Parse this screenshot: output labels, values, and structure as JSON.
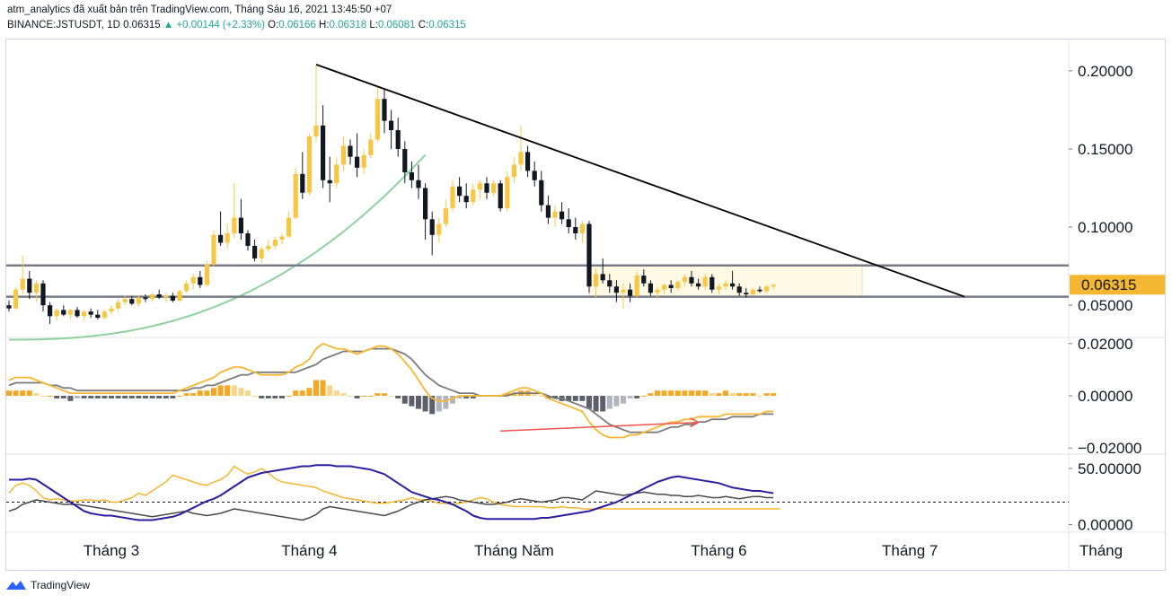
{
  "header": {
    "line1": "atm_analytics đã xuất bản trên TradingView.com, Tháng Sáu 16, 2021 13:45:50 +07",
    "symbol": "BINANCE:JSTUSDT, 1D",
    "last": "0.06315",
    "change": "▲ +0.00144 (+2.33%)",
    "open_label": "O:",
    "open": "0.06166",
    "high_label": "H:",
    "high": "0.06318",
    "low_label": "L:",
    "low": "0.06081",
    "close_label": "C:",
    "close": "0.06315"
  },
  "footer": {
    "brand": "TradingView"
  },
  "colors": {
    "up": "#f7c744",
    "down": "#131722",
    "accent": "#f5b731",
    "grid": "#e0e3eb",
    "macd_signal": "#7b7b7b",
    "rsi_blue": "#2b1fa0",
    "hist_pos": "#f5a623",
    "hist_neg": "#5d606b",
    "trend": "#000000",
    "curve": "#8fd19e",
    "div_line": "#ef5350"
  },
  "chart_data": [
    {
      "type": "candlestick",
      "name": "price",
      "ylim": [
        0.03,
        0.22
      ],
      "yticks": [
        "0.20000",
        "0.15000",
        "0.10000",
        "0.05000"
      ],
      "ytick_values": [
        0.2,
        0.15,
        0.1,
        0.05
      ],
      "last_price_label": "0.06315",
      "last_price": 0.06315,
      "xticks": [
        "Tháng 3",
        "Tháng 4",
        "Tháng Năm",
        "Tháng 6",
        "Tháng 7",
        "Tháng"
      ],
      "candles_ohlc": [
        [
          0.05,
          0.053,
          0.046,
          0.048
        ],
        [
          0.048,
          0.062,
          0.047,
          0.06
        ],
        [
          0.06,
          0.082,
          0.057,
          0.067
        ],
        [
          0.067,
          0.072,
          0.054,
          0.058
        ],
        [
          0.058,
          0.066,
          0.052,
          0.064
        ],
        [
          0.064,
          0.066,
          0.046,
          0.05
        ],
        [
          0.05,
          0.052,
          0.038,
          0.043
        ],
        [
          0.043,
          0.048,
          0.04,
          0.047
        ],
        [
          0.047,
          0.05,
          0.043,
          0.044
        ],
        [
          0.044,
          0.048,
          0.041,
          0.047
        ],
        [
          0.047,
          0.049,
          0.042,
          0.043
        ],
        [
          0.043,
          0.047,
          0.04,
          0.046
        ],
        [
          0.046,
          0.048,
          0.042,
          0.044
        ],
        [
          0.044,
          0.047,
          0.041,
          0.042
        ],
        [
          0.042,
          0.047,
          0.041,
          0.046
        ],
        [
          0.046,
          0.05,
          0.044,
          0.048
        ],
        [
          0.048,
          0.054,
          0.046,
          0.052
        ],
        [
          0.052,
          0.056,
          0.05,
          0.054
        ],
        [
          0.054,
          0.056,
          0.05,
          0.051
        ],
        [
          0.051,
          0.056,
          0.049,
          0.055
        ],
        [
          0.055,
          0.057,
          0.052,
          0.054
        ],
        [
          0.054,
          0.058,
          0.052,
          0.057
        ],
        [
          0.057,
          0.06,
          0.054,
          0.055
        ],
        [
          0.055,
          0.058,
          0.052,
          0.056
        ],
        [
          0.056,
          0.058,
          0.052,
          0.053
        ],
        [
          0.053,
          0.06,
          0.052,
          0.059
        ],
        [
          0.059,
          0.066,
          0.058,
          0.064
        ],
        [
          0.064,
          0.07,
          0.06,
          0.068
        ],
        [
          0.068,
          0.072,
          0.061,
          0.063
        ],
        [
          0.063,
          0.078,
          0.062,
          0.076
        ],
        [
          0.076,
          0.098,
          0.075,
          0.095
        ],
        [
          0.095,
          0.11,
          0.088,
          0.09
        ],
        [
          0.09,
          0.102,
          0.086,
          0.096
        ],
        [
          0.096,
          0.128,
          0.093,
          0.106
        ],
        [
          0.106,
          0.118,
          0.092,
          0.096
        ],
        [
          0.096,
          0.098,
          0.085,
          0.088
        ],
        [
          0.088,
          0.092,
          0.078,
          0.08
        ],
        [
          0.08,
          0.088,
          0.077,
          0.086
        ],
        [
          0.086,
          0.092,
          0.084,
          0.088
        ],
        [
          0.088,
          0.094,
          0.086,
          0.092
        ],
        [
          0.092,
          0.096,
          0.089,
          0.094
        ],
        [
          0.094,
          0.11,
          0.093,
          0.106
        ],
        [
          0.106,
          0.138,
          0.105,
          0.134
        ],
        [
          0.134,
          0.148,
          0.118,
          0.122
        ],
        [
          0.122,
          0.16,
          0.12,
          0.158
        ],
        [
          0.158,
          0.204,
          0.155,
          0.165
        ],
        [
          0.165,
          0.178,
          0.125,
          0.13
        ],
        [
          0.13,
          0.145,
          0.116,
          0.128
        ],
        [
          0.128,
          0.145,
          0.125,
          0.14
        ],
        [
          0.14,
          0.158,
          0.136,
          0.152
        ],
        [
          0.152,
          0.156,
          0.14,
          0.145
        ],
        [
          0.145,
          0.16,
          0.132,
          0.138
        ],
        [
          0.138,
          0.15,
          0.134,
          0.146
        ],
        [
          0.146,
          0.16,
          0.144,
          0.156
        ],
        [
          0.156,
          0.19,
          0.155,
          0.182
        ],
        [
          0.182,
          0.188,
          0.16,
          0.168
        ],
        [
          0.168,
          0.175,
          0.15,
          0.162
        ],
        [
          0.162,
          0.17,
          0.145,
          0.15
        ],
        [
          0.15,
          0.155,
          0.128,
          0.135
        ],
        [
          0.135,
          0.142,
          0.125,
          0.13
        ],
        [
          0.13,
          0.14,
          0.118,
          0.125
        ],
        [
          0.125,
          0.128,
          0.092,
          0.105
        ],
        [
          0.105,
          0.11,
          0.082,
          0.095
        ],
        [
          0.095,
          0.106,
          0.09,
          0.102
        ],
        [
          0.102,
          0.118,
          0.1,
          0.112
        ],
        [
          0.112,
          0.13,
          0.11,
          0.126
        ],
        [
          0.126,
          0.132,
          0.116,
          0.12
        ],
        [
          0.12,
          0.128,
          0.112,
          0.116
        ],
        [
          0.116,
          0.128,
          0.114,
          0.124
        ],
        [
          0.124,
          0.13,
          0.118,
          0.128
        ],
        [
          0.128,
          0.132,
          0.118,
          0.122
        ],
        [
          0.122,
          0.13,
          0.12,
          0.128
        ],
        [
          0.128,
          0.13,
          0.11,
          0.112
        ],
        [
          0.112,
          0.136,
          0.11,
          0.132
        ],
        [
          0.132,
          0.145,
          0.128,
          0.14
        ],
        [
          0.14,
          0.165,
          0.136,
          0.148
        ],
        [
          0.148,
          0.152,
          0.132,
          0.136
        ],
        [
          0.136,
          0.142,
          0.126,
          0.13
        ],
        [
          0.13,
          0.136,
          0.11,
          0.114
        ],
        [
          0.114,
          0.12,
          0.102,
          0.106
        ],
        [
          0.106,
          0.114,
          0.1,
          0.11
        ],
        [
          0.11,
          0.116,
          0.102,
          0.105
        ],
        [
          0.105,
          0.112,
          0.096,
          0.1
        ],
        [
          0.1,
          0.106,
          0.092,
          0.096
        ],
        [
          0.096,
          0.104,
          0.09,
          0.102
        ],
        [
          0.102,
          0.104,
          0.058,
          0.062
        ],
        [
          0.062,
          0.074,
          0.055,
          0.07
        ],
        [
          0.07,
          0.08,
          0.064,
          0.066
        ],
        [
          0.066,
          0.07,
          0.058,
          0.062
        ],
        [
          0.062,
          0.066,
          0.052,
          0.058
        ],
        [
          0.058,
          0.064,
          0.048,
          0.06
        ],
        [
          0.06,
          0.064,
          0.052,
          0.056
        ],
        [
          0.056,
          0.072,
          0.055,
          0.069
        ],
        [
          0.069,
          0.073,
          0.062,
          0.064
        ],
        [
          0.064,
          0.066,
          0.056,
          0.058
        ],
        [
          0.058,
          0.062,
          0.054,
          0.06
        ],
        [
          0.06,
          0.064,
          0.057,
          0.063
        ],
        [
          0.063,
          0.066,
          0.058,
          0.061
        ],
        [
          0.061,
          0.066,
          0.059,
          0.065
        ],
        [
          0.065,
          0.07,
          0.062,
          0.068
        ],
        [
          0.068,
          0.072,
          0.062,
          0.064
        ],
        [
          0.064,
          0.067,
          0.06,
          0.062
        ],
        [
          0.062,
          0.07,
          0.06,
          0.068
        ],
        [
          0.068,
          0.07,
          0.058,
          0.06
        ],
        [
          0.06,
          0.064,
          0.057,
          0.062
        ],
        [
          0.062,
          0.066,
          0.06,
          0.064
        ],
        [
          0.064,
          0.072,
          0.06,
          0.062
        ],
        [
          0.062,
          0.064,
          0.056,
          0.058
        ],
        [
          0.058,
          0.061,
          0.055,
          0.057
        ],
        [
          0.057,
          0.061,
          0.056,
          0.06
        ],
        [
          0.06,
          0.062,
          0.058,
          0.059
        ],
        [
          0.059,
          0.063,
          0.058,
          0.062
        ],
        [
          0.062,
          0.064,
          0.06,
          0.063
        ]
      ],
      "resistance": 0.0755,
      "support": 0.0555,
      "trendline": [
        [
          45,
          0.204
        ],
        [
          140,
          0.0555
        ]
      ],
      "range_box": {
        "from_index": 85,
        "to_index": 125,
        "top": 0.0755,
        "bottom": 0.0555
      }
    },
    {
      "type": "line",
      "name": "macd",
      "ylim": [
        -0.022,
        0.022
      ],
      "yticks": [
        "0.02000",
        "0.00000",
        "−0.02000"
      ],
      "ytick_values": [
        0.02,
        0.0,
        -0.02
      ],
      "macd": [
        0.006,
        0.007,
        0.007,
        0.007,
        0.006,
        0.005,
        0.004,
        0.003,
        0.002,
        0.001,
        0.001,
        0.001,
        0.001,
        0.001,
        0.001,
        0.001,
        0.001,
        0.001,
        0.001,
        0.001,
        0.001,
        0.001,
        0.001,
        0.001,
        0.001,
        0.002,
        0.003,
        0.004,
        0.005,
        0.006,
        0.007,
        0.009,
        0.01,
        0.011,
        0.011,
        0.01,
        0.009,
        0.008,
        0.008,
        0.008,
        0.008,
        0.009,
        0.011,
        0.012,
        0.014,
        0.018,
        0.02,
        0.019,
        0.018,
        0.018,
        0.017,
        0.016,
        0.017,
        0.018,
        0.019,
        0.019,
        0.018,
        0.016,
        0.013,
        0.01,
        0.006,
        0.002,
        -0.001,
        -0.002,
        -0.002,
        -0.001,
        0.0,
        0.0,
        0.0,
        0.0,
        0.0,
        0.0,
        0.0,
        0.001,
        0.002,
        0.003,
        0.003,
        0.002,
        0.001,
        -0.001,
        -0.002,
        -0.003,
        -0.004,
        -0.005,
        -0.006,
        -0.01,
        -0.013,
        -0.015,
        -0.016,
        -0.016,
        -0.016,
        -0.015,
        -0.015,
        -0.014,
        -0.013,
        -0.012,
        -0.011,
        -0.01,
        -0.01,
        -0.009,
        -0.009,
        -0.008,
        -0.008,
        -0.008,
        -0.008,
        -0.007,
        -0.007,
        -0.007,
        -0.007,
        -0.007,
        -0.007,
        -0.006,
        -0.006
      ],
      "signal": [
        0.004,
        0.005,
        0.005,
        0.005,
        0.005,
        0.005,
        0.004,
        0.004,
        0.003,
        0.003,
        0.002,
        0.002,
        0.002,
        0.002,
        0.002,
        0.002,
        0.002,
        0.002,
        0.002,
        0.002,
        0.002,
        0.002,
        0.002,
        0.002,
        0.002,
        0.002,
        0.002,
        0.003,
        0.003,
        0.004,
        0.004,
        0.005,
        0.006,
        0.007,
        0.008,
        0.008,
        0.009,
        0.009,
        0.009,
        0.009,
        0.009,
        0.009,
        0.009,
        0.01,
        0.011,
        0.012,
        0.014,
        0.015,
        0.016,
        0.017,
        0.017,
        0.017,
        0.017,
        0.018,
        0.018,
        0.018,
        0.018,
        0.017,
        0.016,
        0.014,
        0.011,
        0.008,
        0.006,
        0.004,
        0.003,
        0.002,
        0.001,
        0.001,
        0.001,
        0.0,
        0.0,
        0.0,
        0.0,
        0.0,
        0.001,
        0.001,
        0.001,
        0.001,
        0.001,
        0.0,
        -0.001,
        -0.001,
        -0.002,
        -0.003,
        -0.004,
        -0.005,
        -0.007,
        -0.009,
        -0.011,
        -0.012,
        -0.013,
        -0.014,
        -0.014,
        -0.014,
        -0.014,
        -0.014,
        -0.013,
        -0.012,
        -0.012,
        -0.011,
        -0.011,
        -0.01,
        -0.01,
        -0.009,
        -0.009,
        -0.009,
        -0.008,
        -0.008,
        -0.008,
        -0.008,
        -0.007,
        -0.007,
        -0.007
      ],
      "divergence_line": [
        [
          72,
          -0.0135
        ],
        [
          101,
          -0.0102
        ]
      ]
    },
    {
      "type": "line",
      "name": "dmi",
      "ylim": [
        -6,
        62
      ],
      "yticks": [
        "50.00000",
        "0.00000"
      ],
      "ytick_values": [
        50,
        0
      ],
      "dashed_level": 20,
      "blue": [
        40,
        40,
        40,
        41,
        40,
        36,
        32,
        28,
        24,
        20,
        16,
        12,
        10,
        9,
        8,
        8,
        7,
        6,
        5,
        4,
        4,
        4,
        5,
        6,
        7,
        9,
        12,
        15,
        18,
        21,
        23,
        26,
        30,
        34,
        38,
        42,
        44,
        46,
        47,
        48,
        49,
        50,
        51,
        52,
        52,
        53,
        53,
        53,
        52,
        52,
        52,
        51,
        50,
        49,
        47,
        45,
        41,
        37,
        33,
        29,
        27,
        25,
        23,
        22,
        20,
        18,
        15,
        12,
        8,
        6,
        5,
        5,
        5,
        5,
        5,
        5,
        5,
        5,
        6,
        6,
        7,
        8,
        9,
        10,
        11,
        12,
        14,
        16,
        18,
        20,
        23,
        26,
        29,
        32,
        35,
        38,
        40,
        42,
        43,
        42,
        41,
        40,
        39,
        38,
        37,
        35,
        33,
        32,
        31,
        30,
        30,
        29,
        28
      ],
      "grey": [
        12,
        14,
        18,
        20,
        22,
        21,
        20,
        19,
        18,
        18,
        18,
        17,
        16,
        15,
        14,
        13,
        12,
        11,
        10,
        9,
        8,
        7,
        8,
        9,
        10,
        11,
        12,
        10,
        9,
        8,
        9,
        10,
        12,
        14,
        13,
        12,
        11,
        10,
        9,
        8,
        7,
        6,
        5,
        4,
        6,
        9,
        14,
        16,
        15,
        14,
        13,
        12,
        11,
        10,
        9,
        8,
        10,
        12,
        15,
        18,
        20,
        22,
        23,
        24,
        25,
        24,
        22,
        21,
        20,
        19,
        18,
        18,
        19,
        20,
        22,
        23,
        22,
        21,
        20,
        21,
        22,
        24,
        24,
        23,
        22,
        26,
        30,
        29,
        28,
        27,
        26,
        27,
        28,
        29,
        28,
        27,
        27,
        26,
        26,
        25,
        25,
        26,
        25,
        24,
        24,
        25,
        24,
        23,
        24,
        25,
        25,
        24,
        24
      ],
      "orange": [
        28,
        35,
        37,
        35,
        30,
        24,
        22,
        23,
        22,
        21,
        21,
        22,
        22,
        21,
        22,
        20,
        20,
        22,
        24,
        28,
        26,
        30,
        34,
        38,
        44,
        42,
        40,
        38,
        36,
        35,
        38,
        40,
        44,
        52,
        48,
        45,
        47,
        50,
        46,
        41,
        38,
        37,
        36,
        35,
        34,
        33,
        30,
        28,
        26,
        24,
        23,
        22,
        21,
        20,
        19,
        19,
        20,
        21,
        22,
        24,
        22,
        22,
        21,
        19,
        19,
        18,
        19,
        20,
        22,
        24,
        23,
        20,
        18,
        17,
        16,
        16,
        16,
        16,
        16,
        15,
        15,
        16,
        15,
        15,
        14,
        14,
        14,
        14,
        14,
        14,
        14,
        14,
        14,
        14,
        14,
        14,
        14,
        14,
        14,
        14,
        14,
        14,
        14,
        14,
        14,
        14,
        14,
        14,
        14,
        14,
        14,
        14,
        14,
        14
      ]
    }
  ]
}
